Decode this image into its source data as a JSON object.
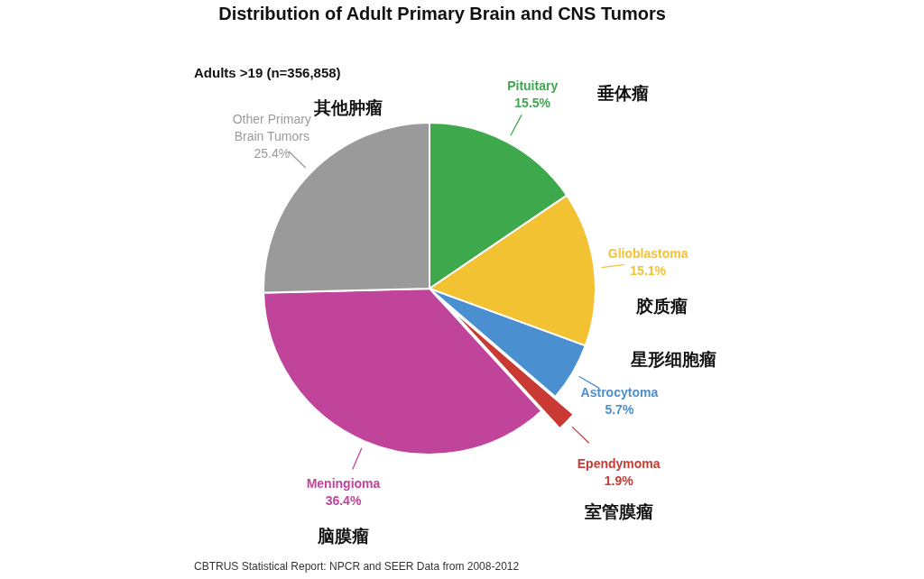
{
  "chart_data": {
    "type": "pie",
    "title": "Distribution of Adult Primary Brain and CNS Tumors",
    "subtitle": "Adults >19 (n=356,858)",
    "categories": [
      "Pituitary",
      "Glioblastoma",
      "Astrocytoma",
      "Ependymoma",
      "Meningioma",
      "Other Primary Brain Tumors"
    ],
    "values": [
      15.5,
      15.1,
      5.7,
      1.9,
      36.4,
      25.4
    ],
    "value_labels": [
      "15.5%",
      "15.1%",
      "5.7%",
      "1.9%",
      "36.4%",
      "25.4%"
    ],
    "colors": [
      "#3ea84c",
      "#f2c232",
      "#4a8fd0",
      "#c83a33",
      "#c0449a",
      "#9a9a9a"
    ],
    "annotations": [
      {
        "text": "垂体瘤",
        "x": "Pituitary"
      },
      {
        "text": "胶质瘤",
        "x": "Glioblastoma"
      },
      {
        "text": "星形细胞瘤",
        "x": "Astrocytoma"
      },
      {
        "text": "室管膜瘤",
        "x": "Ependymoma"
      },
      {
        "text": "脑膜瘤",
        "x": "Meningioma"
      },
      {
        "text": "其他肿瘤",
        "x": "Other Primary Brain Tumors"
      },
      "CBTRUS Statistical Report: NPCR and SEER Data from 2008-2012"
    ]
  }
}
